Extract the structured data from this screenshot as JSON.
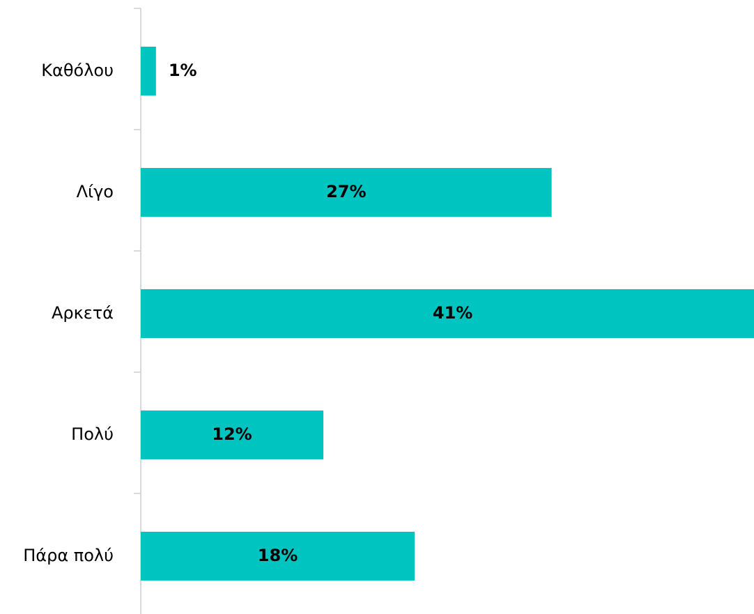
{
  "chart_data": {
    "type": "bar",
    "orientation": "horizontal",
    "categories": [
      "Καθόλου",
      "Λίγο",
      "Αρκετά",
      "Πολύ",
      "Πάρα πολύ"
    ],
    "values": [
      1,
      27,
      41,
      12,
      18
    ],
    "value_labels": [
      "1%",
      "27%",
      "41%",
      "12%",
      "18%"
    ],
    "color": "#00c4c0",
    "xlim": [
      0,
      40.3
    ]
  }
}
